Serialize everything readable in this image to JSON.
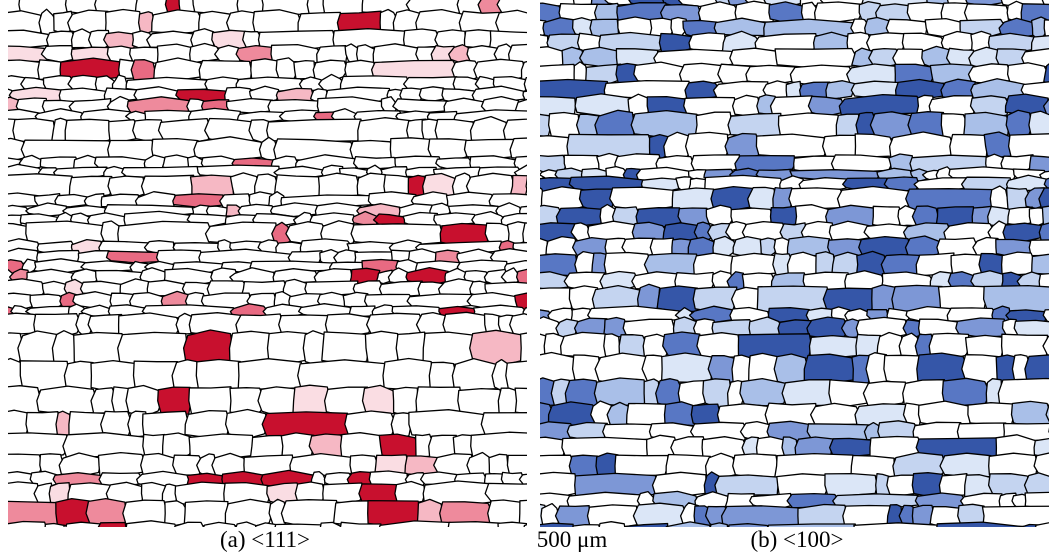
{
  "figure": {
    "panels": [
      {
        "caption": "(a) <111>"
      },
      {
        "caption": "(b) <100>"
      }
    ],
    "scale_bar": "500 μm"
  }
}
